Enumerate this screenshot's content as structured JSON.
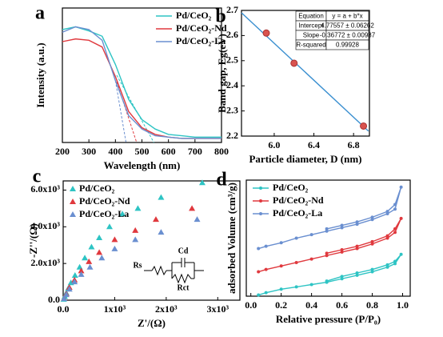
{
  "chart_data": [
    {
      "type": "line",
      "label": "a",
      "xlabel": "Wavelength (nm)",
      "ylabel": "Intensity (a.u.)",
      "xlim": [
        200,
        800
      ],
      "xticks": [
        200,
        300,
        400,
        500,
        600,
        700,
        800
      ],
      "ylim": [
        0,
        1
      ],
      "legend": "upper right",
      "series": [
        {
          "name": "Pd/CeO₂",
          "color": "#2ec4c4",
          "x": [
            200,
            250,
            300,
            350,
            400,
            450,
            500,
            550,
            600,
            650,
            700,
            750,
            800
          ],
          "values": [
            0.84,
            0.86,
            0.83,
            0.79,
            0.58,
            0.32,
            0.17,
            0.1,
            0.06,
            0.05,
            0.04,
            0.04,
            0.04
          ]
        },
        {
          "name": "Pd/CeO₂-Nd",
          "color": "#e0393e",
          "x": [
            200,
            250,
            300,
            350,
            400,
            450,
            500,
            550,
            600,
            650,
            700,
            750,
            800
          ],
          "values": [
            0.75,
            0.77,
            0.76,
            0.71,
            0.49,
            0.23,
            0.11,
            0.06,
            0.04,
            0.03,
            0.03,
            0.03,
            0.03
          ]
        },
        {
          "name": "Pd/CeO₂-La",
          "color": "#6a8fd0",
          "x": [
            200,
            250,
            300,
            350,
            400,
            450,
            500,
            550,
            600,
            650,
            700,
            750,
            800
          ],
          "values": [
            0.82,
            0.86,
            0.84,
            0.76,
            0.46,
            0.2,
            0.1,
            0.05,
            0.04,
            0.03,
            0.03,
            0.03,
            0.03
          ]
        }
      ],
      "tangents": [
        {
          "color": "#2ec4c4",
          "x": [
            405,
            545
          ],
          "values": [
            0.5,
            0
          ]
        },
        {
          "color": "#e0393e",
          "x": [
            405,
            480
          ],
          "values": [
            0.45,
            0
          ]
        },
        {
          "color": "#6a8fd0",
          "x": [
            400,
            440
          ],
          "values": [
            0.46,
            0
          ]
        }
      ]
    },
    {
      "type": "scatter",
      "label": "b",
      "xlabel": "Particle diameter, D (nm)",
      "ylabel": "Band gap, Eg(eV)",
      "xlim": [
        5.67,
        6.96
      ],
      "xticks": [
        {
          "value": 6,
          "label": "6.0"
        },
        6.4,
        6.8
      ],
      "ylim": [
        2.2,
        2.7
      ],
      "yticks": [
        2.2,
        2.3,
        2.4,
        2.5,
        2.6,
        2.7
      ],
      "series": [
        {
          "color": "#d9534f",
          "marker": "circle",
          "x": [
            5.92,
            6.2,
            6.9
          ],
          "values": [
            2.61,
            2.49,
            2.24
          ]
        }
      ],
      "fit": {
        "color": "#3a8fd0",
        "x": [
          5.67,
          6.95
        ],
        "values": [
          2.6906,
          2.2199
        ]
      },
      "table": [
        [
          "Equation",
          "y = a + b*x"
        ],
        [
          "Intercept",
          "4.77557 ± 0.06262"
        ],
        [
          "Slope",
          "-0.36772 ± 0.00987"
        ],
        [
          "R-squared",
          "0.99928"
        ]
      ]
    },
    {
      "type": "scatter",
      "label": "c",
      "xlabel": "Z'/(Ω)",
      "ylabel": "-Z''/(Ω)",
      "xlim": [
        0,
        3430
      ],
      "xticks": [
        {
          "value": 0,
          "label": "0.0"
        },
        {
          "value": 1000,
          "label": "1x10³"
        },
        {
          "value": 2000,
          "label": "2x10³"
        },
        {
          "value": 3000,
          "label": "3x10³"
        }
      ],
      "ylim": [
        0,
        6500
      ],
      "yticks": [
        {
          "value": 0,
          "label": "0.0"
        },
        {
          "value": 2000,
          "label": "2.0x10³"
        },
        {
          "value": 4000,
          "label": "4.0x10³"
        },
        {
          "value": 6000,
          "label": "6.0x10³"
        }
      ],
      "legend": "upper left",
      "annotations": [
        "Rs",
        "Cd",
        "Rct"
      ],
      "series": [
        {
          "name": "Pd/CeO₂",
          "color": "#2ec4c4",
          "marker": "triangle",
          "x": [
            10,
            30,
            60,
            100,
            150,
            230,
            320,
            420,
            550,
            700,
            900,
            1150,
            1450,
            1900,
            2700
          ],
          "values": [
            50,
            200,
            400,
            650,
            950,
            1350,
            1800,
            2300,
            2900,
            3400,
            4000,
            4700,
            5000,
            5600,
            6400
          ]
        },
        {
          "name": "Pd/CeO₂-Nd",
          "color": "#e0393e",
          "marker": "triangle",
          "x": [
            20,
            60,
            120,
            220,
            350,
            500,
            700,
            1000,
            1400,
            1800,
            2500
          ],
          "values": [
            100,
            350,
            700,
            1100,
            1600,
            2100,
            2600,
            3300,
            3800,
            4400,
            5000
          ]
        },
        {
          "name": "Pd/CeO₂-La",
          "color": "#6a8fd0",
          "marker": "triangle",
          "x": [
            20,
            60,
            120,
            220,
            350,
            520,
            750,
            1000,
            1400,
            1900,
            2600
          ],
          "values": [
            80,
            300,
            600,
            1000,
            1400,
            1800,
            2300,
            2800,
            3300,
            3700,
            4400
          ]
        }
      ]
    },
    {
      "type": "line",
      "label": "d",
      "xlabel": "Relative pressure (P/P₀)",
      "ylabel": "adsorbed Volume (cm³/g)",
      "xlim": [
        -0.03,
        1.05
      ],
      "xticks": [
        {
          "value": 0,
          "label": "0.0"
        },
        0.2,
        0.4,
        0.6,
        0.8,
        {
          "value": 1,
          "label": "1.0"
        }
      ],
      "ylim": [
        0,
        1
      ],
      "legend": "upper left",
      "series": [
        {
          "name": "Pd/CeO₂",
          "color": "#2ec4c4",
          "marker": "circle",
          "x": [
            0.05,
            0.1,
            0.2,
            0.3,
            0.4,
            0.5,
            0.6,
            0.7,
            0.8,
            0.9,
            0.95,
            0.99,
            0.95,
            0.9,
            0.8,
            0.7,
            0.6,
            0.5
          ],
          "values": [
            0.01,
            0.03,
            0.06,
            0.08,
            0.1,
            0.12,
            0.15,
            0.18,
            0.21,
            0.25,
            0.28,
            0.36,
            0.3,
            0.27,
            0.23,
            0.2,
            0.17,
            0.13
          ]
        },
        {
          "name": "Pd/CeO₂-Nd",
          "color": "#e0393e",
          "marker": "circle",
          "x": [
            0.05,
            0.1,
            0.2,
            0.3,
            0.4,
            0.5,
            0.6,
            0.7,
            0.8,
            0.9,
            0.95,
            0.99,
            0.95,
            0.9,
            0.8,
            0.7,
            0.6,
            0.5
          ],
          "values": [
            0.21,
            0.23,
            0.26,
            0.29,
            0.32,
            0.35,
            0.38,
            0.41,
            0.45,
            0.5,
            0.55,
            0.67,
            0.58,
            0.52,
            0.47,
            0.43,
            0.4,
            0.37
          ]
        },
        {
          "name": "Pd/CeO₂-La",
          "color": "#6a8fd0",
          "marker": "circle",
          "x": [
            0.05,
            0.1,
            0.2,
            0.3,
            0.4,
            0.5,
            0.6,
            0.7,
            0.8,
            0.9,
            0.95,
            0.99,
            0.95,
            0.9,
            0.8,
            0.7,
            0.6,
            0.5
          ],
          "values": [
            0.41,
            0.43,
            0.46,
            0.5,
            0.53,
            0.56,
            0.59,
            0.62,
            0.66,
            0.71,
            0.75,
            0.94,
            0.79,
            0.73,
            0.68,
            0.64,
            0.61,
            0.58
          ]
        }
      ]
    }
  ]
}
